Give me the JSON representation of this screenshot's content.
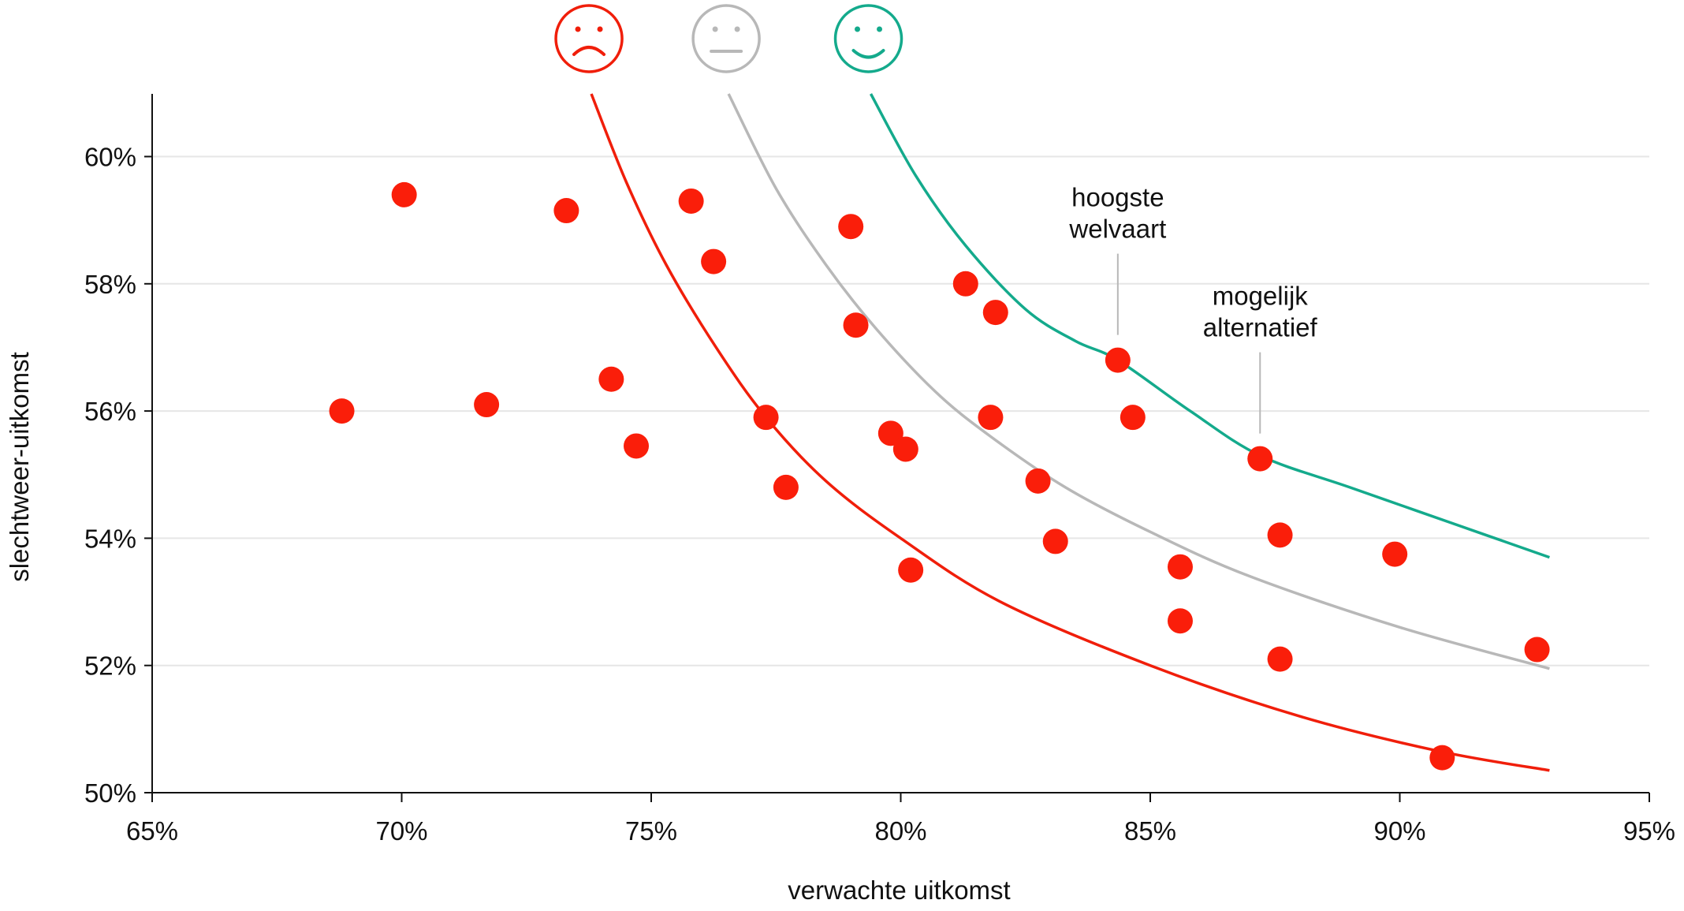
{
  "chart_data": {
    "type": "scatter",
    "title": "",
    "xlabel": "verwachte uitkomst",
    "ylabel": "slechtweer-uitkomst",
    "xlim": [
      65,
      95
    ],
    "ylim": [
      50,
      61
    ],
    "x_ticks": [
      65,
      70,
      75,
      80,
      85,
      90,
      95
    ],
    "x_tick_labels": [
      "65%",
      "70%",
      "75%",
      "80%",
      "85%",
      "90%",
      "95%"
    ],
    "y_ticks": [
      50,
      52,
      54,
      56,
      58,
      60
    ],
    "y_tick_labels": [
      "50%",
      "52%",
      "54%",
      "56%",
      "58%",
      "60%"
    ],
    "grid": "horizontal",
    "colors": {
      "points": "#fa1e0a",
      "curve_bad": "#f01e0a",
      "curve_neutral": "#b8b8b8",
      "curve_good": "#14aa8c",
      "grid": "#e6e6e6",
      "annotation_line": "#b8b8b8"
    },
    "points": [
      {
        "x": 68.8,
        "y": 56.0
      },
      {
        "x": 70.05,
        "y": 59.4
      },
      {
        "x": 71.7,
        "y": 56.1
      },
      {
        "x": 73.3,
        "y": 59.15
      },
      {
        "x": 74.2,
        "y": 56.5
      },
      {
        "x": 74.7,
        "y": 55.45
      },
      {
        "x": 75.8,
        "y": 59.3
      },
      {
        "x": 76.25,
        "y": 58.35
      },
      {
        "x": 77.3,
        "y": 55.9
      },
      {
        "x": 77.7,
        "y": 54.8
      },
      {
        "x": 79.0,
        "y": 58.9
      },
      {
        "x": 79.1,
        "y": 57.35
      },
      {
        "x": 79.8,
        "y": 55.65
      },
      {
        "x": 80.1,
        "y": 55.4
      },
      {
        "x": 80.2,
        "y": 53.5
      },
      {
        "x": 81.3,
        "y": 58.0
      },
      {
        "x": 81.9,
        "y": 57.55
      },
      {
        "x": 81.8,
        "y": 55.9
      },
      {
        "x": 82.75,
        "y": 54.9
      },
      {
        "x": 83.1,
        "y": 53.95
      },
      {
        "x": 84.35,
        "y": 56.8
      },
      {
        "x": 84.65,
        "y": 55.9
      },
      {
        "x": 85.6,
        "y": 53.55
      },
      {
        "x": 85.6,
        "y": 52.7
      },
      {
        "x": 87.2,
        "y": 55.25
      },
      {
        "x": 87.6,
        "y": 54.05
      },
      {
        "x": 87.6,
        "y": 52.1
      },
      {
        "x": 89.9,
        "y": 53.75
      },
      {
        "x": 90.85,
        "y": 50.55
      },
      {
        "x": 92.75,
        "y": 52.25
      }
    ],
    "curves": [
      {
        "name": "ontevreden",
        "icon": "sad-face-icon",
        "color": "#f01e0a",
        "points": [
          [
            73.8,
            61.0
          ],
          [
            74.5,
            59.6
          ],
          [
            75.3,
            58.3
          ],
          [
            76.3,
            57.0
          ],
          [
            77.3,
            55.9
          ],
          [
            78.5,
            54.9
          ],
          [
            80,
            54.0
          ],
          [
            82,
            53.0
          ],
          [
            85,
            52.0
          ],
          [
            88,
            51.2
          ],
          [
            90.8,
            50.65
          ],
          [
            93,
            50.35
          ]
        ]
      },
      {
        "name": "neutraal",
        "icon": "neutral-face-icon",
        "color": "#b8b8b8",
        "points": [
          [
            76.55,
            61.0
          ],
          [
            77.5,
            59.5
          ],
          [
            78.5,
            58.3
          ],
          [
            79.5,
            57.3
          ],
          [
            80.7,
            56.3
          ],
          [
            81.8,
            55.6
          ],
          [
            83.3,
            54.8
          ],
          [
            85,
            54.1
          ],
          [
            87,
            53.4
          ],
          [
            90,
            52.6
          ],
          [
            93,
            51.95
          ]
        ]
      },
      {
        "name": "tevreden",
        "icon": "happy-face-icon",
        "color": "#14aa8c",
        "points": [
          [
            79.4,
            61.0
          ],
          [
            80.3,
            59.7
          ],
          [
            81.3,
            58.6
          ],
          [
            82.5,
            57.6
          ],
          [
            83.5,
            57.1
          ],
          [
            84.35,
            56.8
          ],
          [
            85.8,
            56.0
          ],
          [
            87.2,
            55.3
          ],
          [
            89,
            54.8
          ],
          [
            91,
            54.25
          ],
          [
            93,
            53.7
          ]
        ]
      }
    ],
    "annotations": [
      {
        "lines": [
          "hoogste",
          "welvaart"
        ],
        "x": 84.35,
        "y": 56.8
      },
      {
        "lines": [
          "mogelijk",
          "alternatief"
        ],
        "x": 87.2,
        "y": 55.25
      }
    ]
  }
}
